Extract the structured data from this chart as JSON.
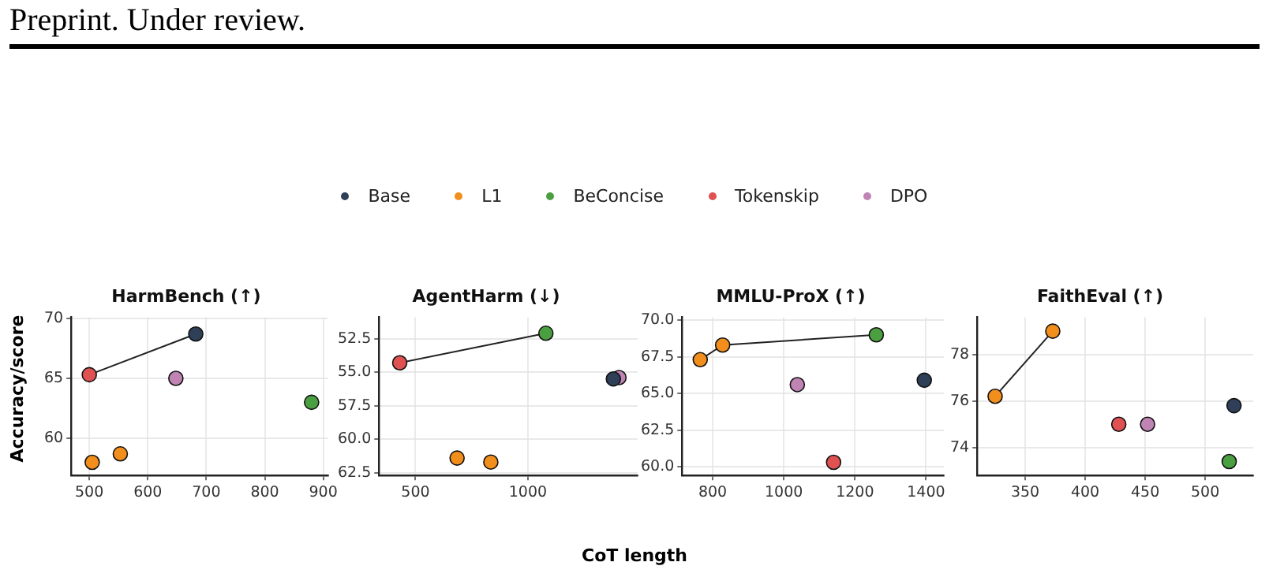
{
  "chart_data": [
    {
      "type": "scatter",
      "title": "HarmBench (↑)",
      "ylabel": "Accuracy/score",
      "annotations": [
        "Preprint. Under review."
      ],
      "legend": "top",
      "grid": true,
      "marker": "circle",
      "xlim": [
        469,
        908
      ],
      "xticks": [
        500,
        600,
        700,
        800,
        900
      ],
      "ylim": [
        56.9,
        70.1
      ],
      "yticks": [
        60,
        65,
        70
      ],
      "series": [
        {
          "name": "Base",
          "color": "#2e3f57",
          "x": [
            682
          ],
          "values": [
            68.7
          ]
        },
        {
          "name": "L1",
          "color": "#f28e1c",
          "x": [
            505,
            553
          ],
          "values": [
            58.0,
            58.7
          ]
        },
        {
          "name": "BeConcise",
          "color": "#4aa040",
          "x": [
            880
          ],
          "values": [
            63.0
          ]
        },
        {
          "name": "Tokenskip",
          "color": "#e05252",
          "x": [
            500
          ],
          "values": [
            65.3
          ]
        },
        {
          "name": "DPO",
          "color": "#c084b4",
          "x": [
            648
          ],
          "values": [
            65.0
          ]
        },
        {
          "type": "line",
          "color": "#222222",
          "marker": "none",
          "x": [
            500,
            682
          ],
          "values": [
            65.3,
            68.7
          ]
        }
      ]
    },
    {
      "type": "scatter",
      "title": "AgentHarm (↓)",
      "xlabel": "CoT length",
      "legend": false,
      "grid": true,
      "marker": "circle",
      "xlim": [
        338,
        1488
      ],
      "xticks": [
        500,
        1000
      ],
      "ylim": [
        62.7,
        50.9
      ],
      "yticks": [
        {
          "value": 52.5,
          "label": "52.5"
        },
        {
          "value": 55,
          "label": "55.0"
        },
        {
          "value": 57.5,
          "label": "57.5"
        },
        {
          "value": 60,
          "label": "60.0"
        },
        {
          "value": 62.5,
          "label": "62.5"
        }
      ],
      "series": [
        {
          "name": "Base",
          "color": "#2e3f57",
          "x": [
            1380
          ],
          "values": [
            55.5
          ]
        },
        {
          "name": "L1",
          "color": "#f28e1c",
          "x": [
            685,
            835
          ],
          "values": [
            61.4,
            61.7
          ]
        },
        {
          "name": "BeConcise",
          "color": "#4aa040",
          "x": [
            1080
          ],
          "values": [
            52.1
          ]
        },
        {
          "name": "Tokenskip",
          "color": "#e05252",
          "x": [
            430
          ],
          "values": [
            54.3
          ]
        },
        {
          "name": "DPO",
          "color": "#c084b4",
          "x": [
            1405
          ],
          "values": [
            55.4
          ]
        },
        {
          "type": "line",
          "color": "#222222",
          "marker": "none",
          "x": [
            430,
            1080
          ],
          "values": [
            54.3,
            52.1
          ]
        }
      ]
    },
    {
      "type": "scatter",
      "title": "MMLU-ProX (↑)",
      "legend": false,
      "grid": true,
      "marker": "circle",
      "xlim": [
        714,
        1450
      ],
      "xticks": [
        800,
        1000,
        1200,
        1400
      ],
      "ylim": [
        59.4,
        70.2
      ],
      "yticks": [
        {
          "value": 60,
          "label": "60.0"
        },
        {
          "value": 62.5,
          "label": "62.5"
        },
        {
          "value": 65,
          "label": "65.0"
        },
        {
          "value": 67.5,
          "label": "67.5"
        },
        {
          "value": 70,
          "label": "70.0"
        }
      ],
      "series": [
        {
          "name": "Base",
          "color": "#2e3f57",
          "x": [
            1395
          ],
          "values": [
            65.9
          ]
        },
        {
          "name": "L1",
          "color": "#f28e1c",
          "x": [
            765,
            828
          ],
          "values": [
            67.3,
            68.3
          ]
        },
        {
          "name": "BeConcise",
          "color": "#4aa040",
          "x": [
            1260
          ],
          "values": [
            69.0
          ]
        },
        {
          "name": "Tokenskip",
          "color": "#e05252",
          "x": [
            1140
          ],
          "values": [
            60.3
          ]
        },
        {
          "name": "DPO",
          "color": "#c084b4",
          "x": [
            1038
          ],
          "values": [
            65.6
          ]
        },
        {
          "type": "line",
          "color": "#222222",
          "marker": "none",
          "x": [
            765,
            828,
            1260
          ],
          "values": [
            67.3,
            68.3,
            69.0
          ]
        }
      ]
    },
    {
      "type": "scatter",
      "title": "FaithEval (↑)",
      "legend": false,
      "grid": true,
      "marker": "circle",
      "xlim": [
        310,
        540
      ],
      "xticks": [
        350,
        400,
        450,
        500
      ],
      "ylim": [
        72.8,
        79.6
      ],
      "yticks": [
        74,
        76,
        78
      ],
      "series": [
        {
          "name": "Base",
          "color": "#2e3f57",
          "x": [
            524
          ],
          "values": [
            75.8
          ]
        },
        {
          "name": "L1",
          "color": "#f28e1c",
          "x": [
            325,
            373
          ],
          "values": [
            76.2,
            79.0
          ]
        },
        {
          "name": "BeConcise",
          "color": "#4aa040",
          "x": [
            520
          ],
          "values": [
            73.4
          ]
        },
        {
          "name": "Tokenskip",
          "color": "#e05252",
          "x": [
            428
          ],
          "values": [
            75.0
          ]
        },
        {
          "name": "DPO",
          "color": "#c084b4",
          "x": [
            452
          ],
          "values": [
            75.0
          ]
        },
        {
          "type": "line",
          "color": "#222222",
          "marker": "none",
          "x": [
            325,
            373
          ],
          "values": [
            76.2,
            79.0
          ]
        }
      ]
    }
  ]
}
